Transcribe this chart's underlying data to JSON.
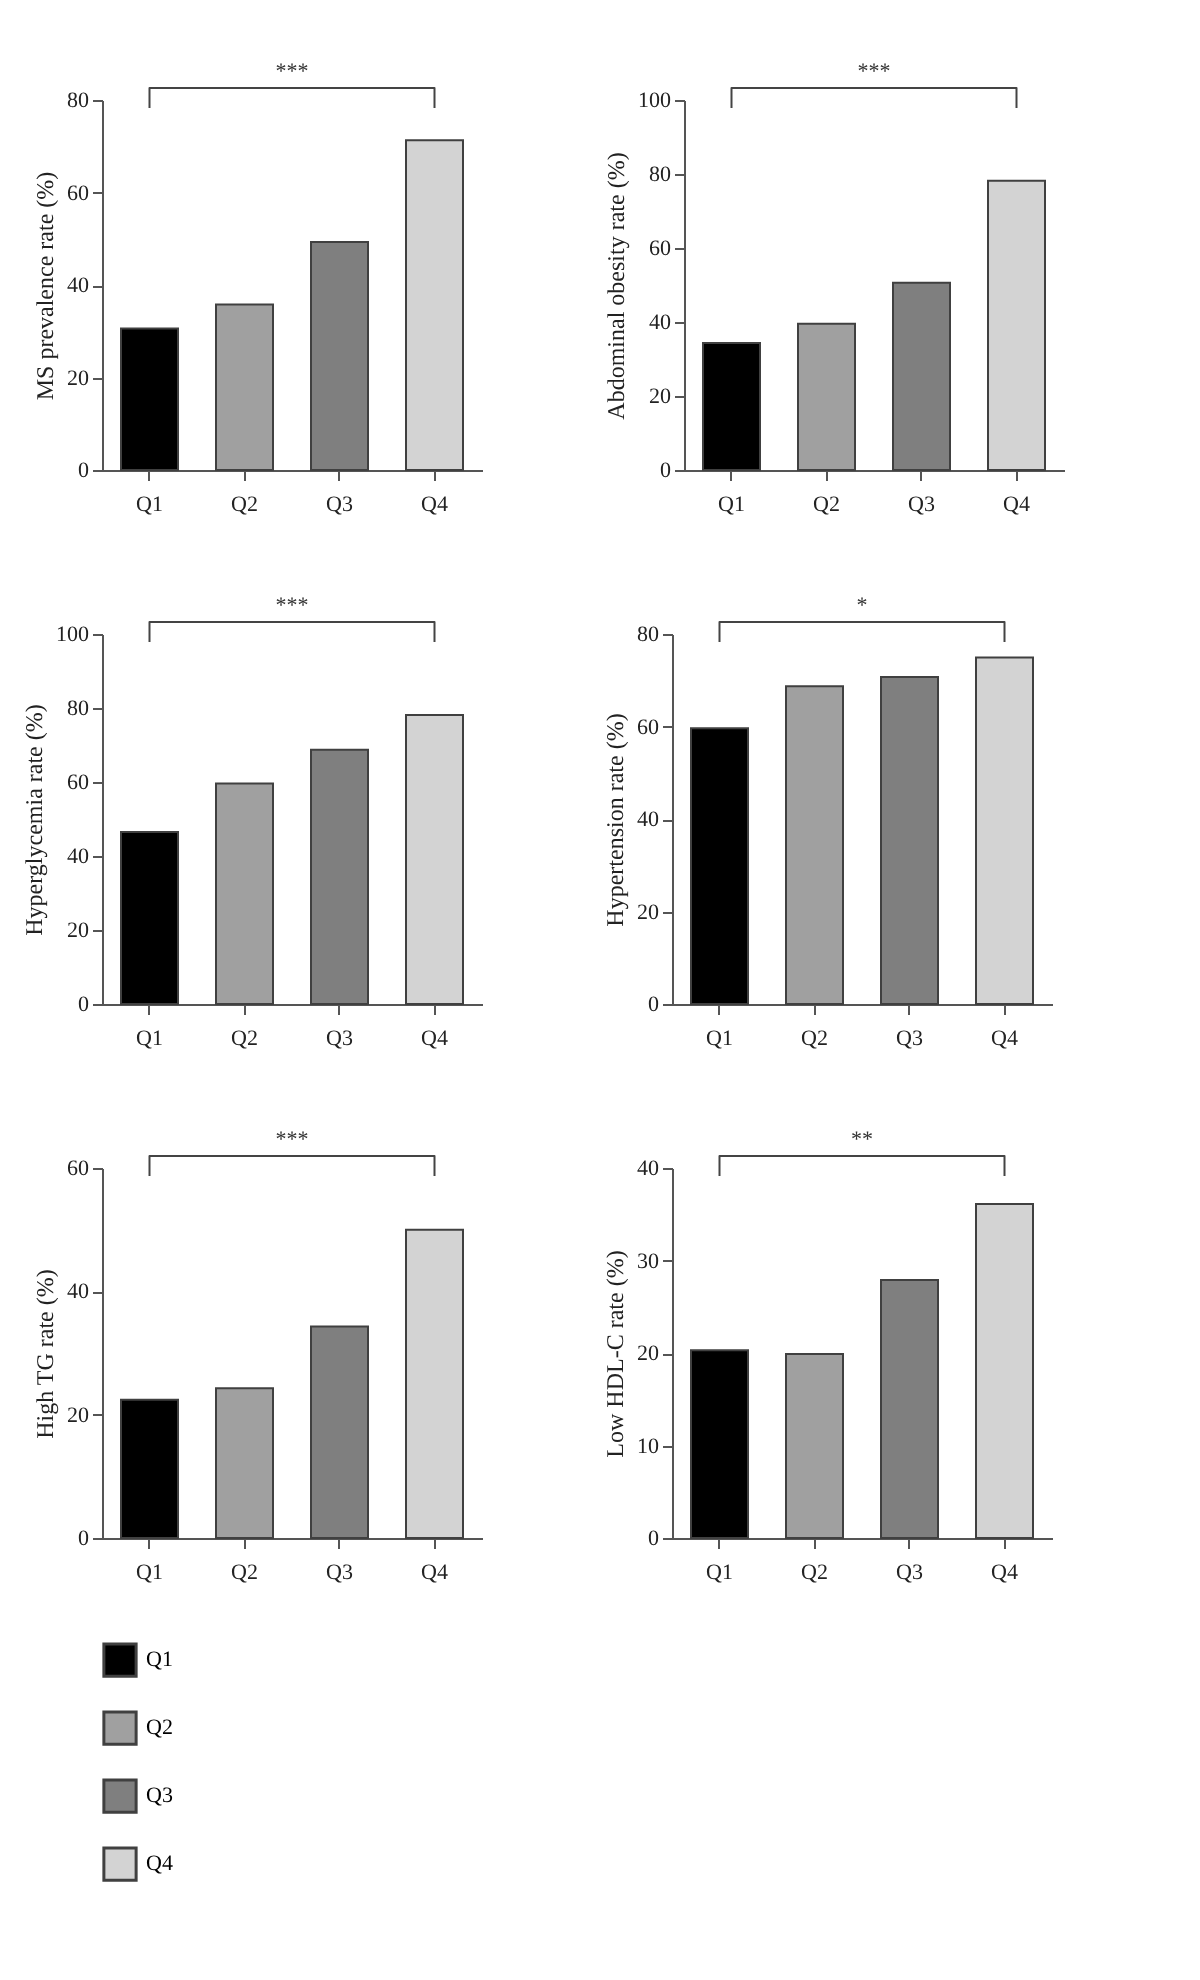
{
  "chart_data": [
    {
      "type": "bar",
      "ylabel": "MS prevalence rate (%)",
      "categories": [
        "Q1",
        "Q2",
        "Q3",
        "Q4"
      ],
      "values": [
        30.6,
        35.8,
        49.3,
        71.3
      ],
      "colors": [
        "#000000",
        "#a0a0a0",
        "#7f7f7f",
        "#d3d3d3"
      ],
      "ylim": [
        0,
        80
      ],
      "yticks": [
        0,
        20,
        40,
        60,
        80
      ],
      "annotations": [
        "***"
      ]
    },
    {
      "type": "bar",
      "ylabel": "Abdominal obesity rate (%)",
      "categories": [
        "Q1",
        "Q2",
        "Q3",
        "Q4"
      ],
      "values": [
        34.3,
        39.5,
        50.6,
        78.2
      ],
      "colors": [
        "#000000",
        "#a0a0a0",
        "#7f7f7f",
        "#d3d3d3"
      ],
      "ylim": [
        0,
        100
      ],
      "yticks": [
        0,
        20,
        40,
        60,
        80,
        100
      ],
      "annotations": [
        "***"
      ]
    },
    {
      "type": "bar",
      "ylabel": "Hyperglycemia rate (%)",
      "categories": [
        "Q1",
        "Q2",
        "Q3",
        "Q4"
      ],
      "values": [
        46.5,
        59.6,
        68.7,
        78.1
      ],
      "colors": [
        "#000000",
        "#a0a0a0",
        "#7f7f7f",
        "#d3d3d3"
      ],
      "ylim": [
        0,
        100
      ],
      "yticks": [
        0,
        20,
        40,
        60,
        80,
        100
      ],
      "annotations": [
        "***"
      ]
    },
    {
      "type": "bar",
      "ylabel": "Hypertension rate (%)",
      "categories": [
        "Q1",
        "Q2",
        "Q3",
        "Q4"
      ],
      "values": [
        59.6,
        68.7,
        70.7,
        74.9
      ],
      "colors": [
        "#000000",
        "#a0a0a0",
        "#7f7f7f",
        "#d3d3d3"
      ],
      "ylim": [
        0,
        80
      ],
      "yticks": [
        0,
        20,
        40,
        60,
        80
      ],
      "annotations": [
        "*"
      ]
    },
    {
      "type": "bar",
      "ylabel": "High TG rate (%)",
      "categories": [
        "Q1",
        "Q2",
        "Q3",
        "Q4"
      ],
      "series": [
        {
          "name": "Q1",
          "color": "#000000",
          "values": [
            22.4,
            null,
            null,
            null
          ]
        },
        {
          "name": "Q2",
          "color": "#a0a0a0",
          "values": [
            null,
            24.3,
            null,
            null
          ]
        },
        {
          "name": "Q3",
          "color": "#7f7f7f",
          "values": [
            null,
            null,
            34.3,
            null
          ]
        },
        {
          "name": "Q4",
          "color": "#d3d3d3",
          "values": [
            null,
            null,
            null,
            50.0
          ]
        }
      ],
      "ylim": [
        0,
        60
      ],
      "yticks": [
        0,
        20,
        40,
        60
      ],
      "annotations": [
        "***"
      ],
      "legend": "bottom"
    },
    {
      "type": "bar",
      "ylabel": "Low HDL-C rate (%)",
      "categories": [
        "Q1",
        "Q2",
        "Q3",
        "Q4"
      ],
      "values": [
        20.3,
        19.9,
        27.9,
        36.1
      ],
      "colors": [
        "#000000",
        "#a0a0a0",
        "#7f7f7f",
        "#d3d3d3"
      ],
      "ylim": [
        0,
        40
      ],
      "yticks": [
        0,
        10,
        20,
        30,
        40
      ],
      "annotations": [
        "**"
      ]
    }
  ]
}
